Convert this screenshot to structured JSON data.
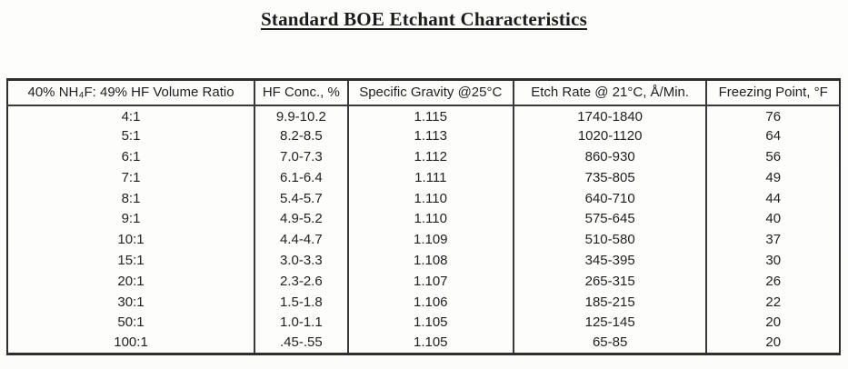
{
  "page": {
    "title": "Standard BOE Etchant Characteristics"
  },
  "table": {
    "columns": [
      "40% NH₄F: 49% HF Volume Ratio",
      "HF Conc., %",
      "Specific Gravity @25°C",
      "Etch Rate @ 21°C, Å/Min.",
      "Freezing Point, °F"
    ],
    "rows": [
      [
        "4:1",
        "9.9-10.2",
        "1.115",
        "1740-1840",
        "76"
      ],
      [
        "5:1",
        "8.2-8.5",
        "1.113",
        "1020-1120",
        "64"
      ],
      [
        "6:1",
        "7.0-7.3",
        "1.112",
        "860-930",
        "56"
      ],
      [
        "7:1",
        "6.1-6.4",
        "1.111",
        "735-805",
        "49"
      ],
      [
        "8:1",
        "5.4-5.7",
        "1.110",
        "640-710",
        "44"
      ],
      [
        "9:1",
        "4.9-5.2",
        "1.110",
        "575-645",
        "40"
      ],
      [
        "10:1",
        "4.4-4.7",
        "1.109",
        "510-580",
        "37"
      ],
      [
        "15:1",
        "3.0-3.3",
        "1.108",
        "345-395",
        "30"
      ],
      [
        "20:1",
        "2.3-2.6",
        "1.107",
        "265-315",
        "26"
      ],
      [
        "30:1",
        "1.5-1.8",
        "1.106",
        "185-215",
        "22"
      ],
      [
        "50:1",
        "1.0-1.1",
        "1.105",
        "125-145",
        "20"
      ],
      [
        "100:1",
        ".45-.55",
        "1.105",
        "65-85",
        "20"
      ]
    ]
  },
  "colors": {
    "background": "#fdfdfc",
    "text": "#212121",
    "border": "#3a3a3a",
    "outer_border": "#2e2e2e"
  }
}
